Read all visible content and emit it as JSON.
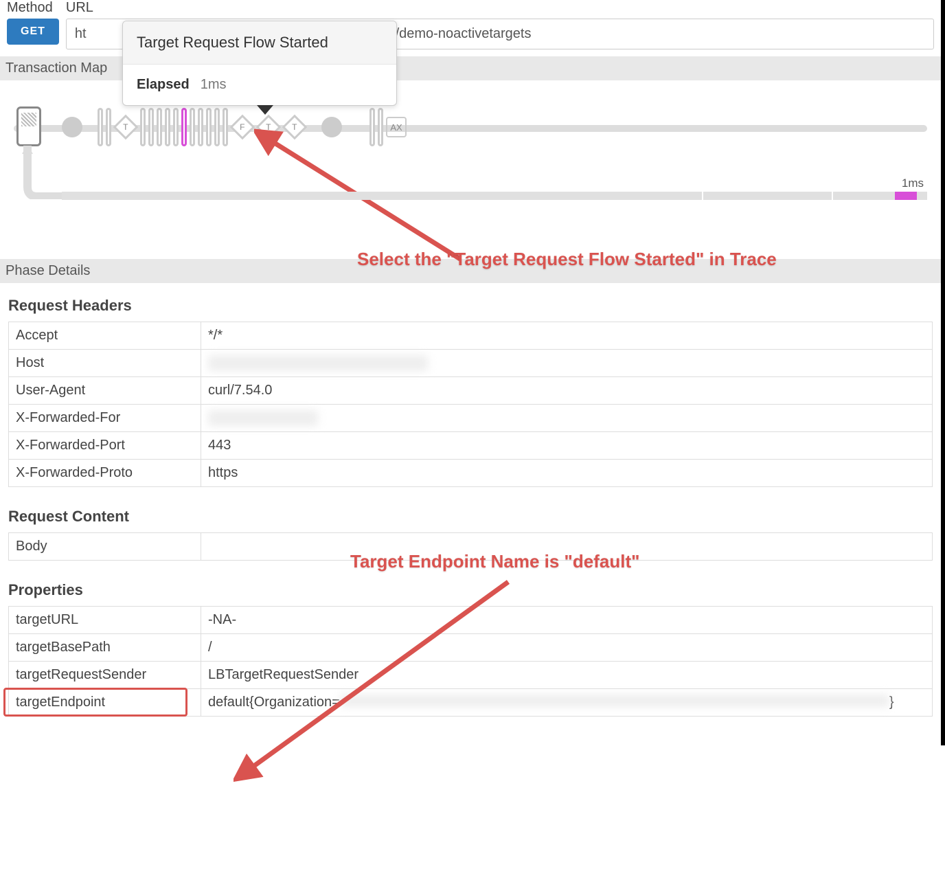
{
  "top": {
    "method_label": "Method",
    "url_label": "URL",
    "get_button": "GET",
    "url_visible_prefix": "ht",
    "url_visible_suffix": "/demo-noactivetargets"
  },
  "tooltip": {
    "title": "Target Request Flow Started",
    "elapsed_label": "Elapsed",
    "elapsed_value": "1ms"
  },
  "sections": {
    "transaction_map": "Transaction Map",
    "phase_details": "Phase Details"
  },
  "trace": {
    "nodes": [
      {
        "t": "circle"
      },
      {
        "t": "gap"
      },
      {
        "t": "pill"
      },
      {
        "t": "pill"
      },
      {
        "t": "diamond",
        "l": "T"
      },
      {
        "t": "pill"
      },
      {
        "t": "pill"
      },
      {
        "t": "pill"
      },
      {
        "t": "pill"
      },
      {
        "t": "pill"
      },
      {
        "t": "pill",
        "sel": true
      },
      {
        "t": "pill"
      },
      {
        "t": "pill"
      },
      {
        "t": "pill"
      },
      {
        "t": "pill"
      },
      {
        "t": "pill"
      },
      {
        "t": "diamond",
        "l": "F"
      },
      {
        "t": "diamond",
        "l": "T"
      },
      {
        "t": "diamond",
        "l": "T"
      },
      {
        "t": "gap"
      },
      {
        "t": "circle"
      },
      {
        "t": "gap"
      },
      {
        "t": "gap"
      },
      {
        "t": "pill"
      },
      {
        "t": "pill"
      },
      {
        "t": "square",
        "l": "AX"
      }
    ],
    "time_label": "1ms"
  },
  "annotations": {
    "a1": "Select the \"Target Request Flow Started\" in Trace",
    "a2": "Target Endpoint Name is \"default\""
  },
  "phase": {
    "request_headers_title": "Request Headers",
    "request_content_title": "Request Content",
    "properties_title": "Properties",
    "headers": [
      {
        "k": "Accept",
        "v": "*/*"
      },
      {
        "k": "Host",
        "v": "",
        "blur": true,
        "bw": 320
      },
      {
        "k": "User-Agent",
        "v": "curl/7.54.0"
      },
      {
        "k": "X-Forwarded-For",
        "v": "",
        "blur": true,
        "bw": 160
      },
      {
        "k": "X-Forwarded-Port",
        "v": "443"
      },
      {
        "k": "X-Forwarded-Proto",
        "v": "https"
      }
    ],
    "content": [
      {
        "k": "Body",
        "v": ""
      }
    ],
    "properties": [
      {
        "k": "targetURL",
        "v": "-NA-"
      },
      {
        "k": "targetBasePath",
        "v": "/"
      },
      {
        "k": "targetRequestSender",
        "v": "LBTargetRequestSender"
      },
      {
        "k": "targetEndpoint",
        "v": "default{Organization=",
        "tail": "}",
        "blur_mid": true,
        "bw": 800,
        "hl": true
      }
    ]
  },
  "colors": {
    "accent_pink": "#d84fd8",
    "annotation_red": "#d9534f",
    "btn_blue": "#2e7bbf"
  }
}
